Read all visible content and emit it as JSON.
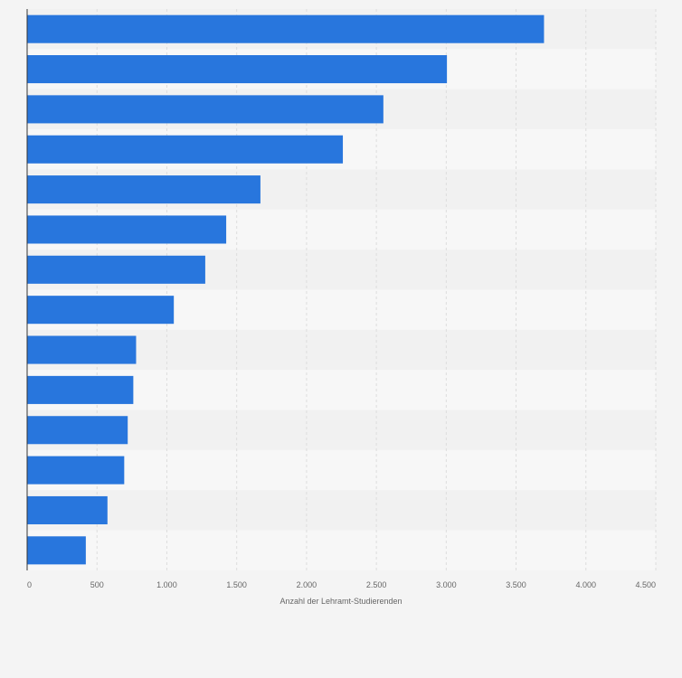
{
  "chart_data": {
    "type": "bar",
    "orientation": "horizontal",
    "categories": [
      "",
      "",
      "",
      "",
      "",
      "",
      "",
      "",
      "",
      "",
      "",
      "",
      "",
      ""
    ],
    "values": [
      3700,
      3005,
      2550,
      2260,
      1670,
      1425,
      1275,
      1050,
      780,
      760,
      720,
      695,
      575,
      420
    ],
    "xlabel": "Anzahl der Lehramt-Studierenden",
    "ylabel": "",
    "xlim": [
      0,
      4500
    ],
    "xticks": [
      0,
      500,
      1000,
      1500,
      2000,
      2500,
      3000,
      3500,
      4000,
      4500
    ],
    "xtick_labels": [
      "0",
      "500",
      "1.000",
      "1.500",
      "2.000",
      "2.500",
      "3.000",
      "3.500",
      "4.000",
      "4.500"
    ],
    "grid": true,
    "colors": {
      "bar": "#2876dd",
      "background": "#f4f4f4",
      "band_light": "#f7f7f7",
      "band_dark": "#f1f1f1",
      "grid": "#dddddd",
      "axis": "#333333",
      "text": "#666666"
    }
  }
}
